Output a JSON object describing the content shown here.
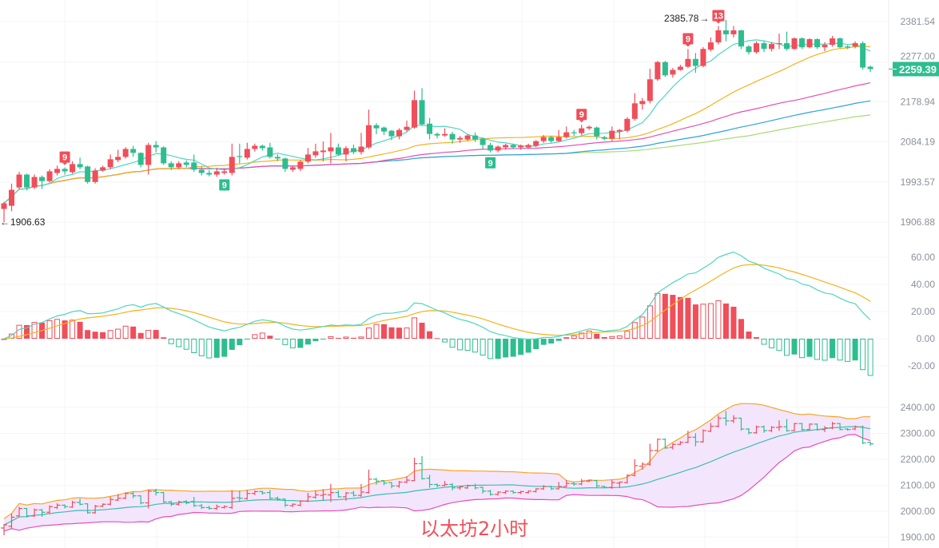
{
  "chart_data": {
    "type": "candlestick",
    "title": "以太坊2小时",
    "up_color": "#f04e5a",
    "down_color": "#2ebd8f",
    "main": {
      "scale": "log",
      "ylim": [
        1906.88,
        2381.54
      ],
      "yticks": [
        {
          "v": 2381.54,
          "t": "2381.54"
        },
        {
          "v": 2277.0,
          "t": "2277.00"
        },
        {
          "v": 2178.94,
          "t": "2178.94"
        },
        {
          "v": 2084.19,
          "t": "2084.19"
        },
        {
          "v": 1993.57,
          "t": "1993.57"
        },
        {
          "v": 1906.88,
          "t": "1906.88"
        }
      ],
      "last_price": 2259.39,
      "last_price_label": "2259.39",
      "last_price_color": "#2ebd8f",
      "max_label": "2385.78",
      "max_bar": 95,
      "min_label": "1906.63",
      "min_bar": 0,
      "moving_averages": [
        {
          "period": 7,
          "color": "#4fd6be"
        },
        {
          "period": 25,
          "color": "#f5b21d"
        },
        {
          "period": 50,
          "color": "#e54fb4"
        },
        {
          "period": 75,
          "color": "#2ea3dc"
        },
        {
          "period": 99,
          "color": "#a8db78"
        }
      ]
    },
    "markers": [
      {
        "bar": 8,
        "text": "9",
        "pos": "above",
        "color": "#f04e5a"
      },
      {
        "bar": 76,
        "text": "9",
        "pos": "above",
        "color": "#f04e5a"
      },
      {
        "bar": 90,
        "text": "9",
        "pos": "above",
        "color": "#f04e5a"
      },
      {
        "bar": 94,
        "text": "13",
        "pos": "above",
        "color": "#f04e5a"
      },
      {
        "bar": 29,
        "text": "9",
        "pos": "below",
        "color": "#2ebd8f"
      },
      {
        "bar": 64,
        "text": "9",
        "pos": "below",
        "color": "#2ebd8f"
      }
    ],
    "candles": [
      [
        1934.8,
        1950,
        1906.63,
        1946.9
      ],
      [
        1941.7,
        1990,
        1930,
        1976.3
      ],
      [
        1981.5,
        2016,
        1978,
        2010.0
      ],
      [
        2010.0,
        2012,
        1975,
        1981.5
      ],
      [
        1981.5,
        2010,
        1978,
        2004.6
      ],
      [
        2004.6,
        2008,
        1978,
        1995.5
      ],
      [
        1995.5,
        2022,
        1992,
        2017.2
      ],
      [
        2013.6,
        2030,
        2008,
        2022.7
      ],
      [
        2022.7,
        2026,
        2010,
        2017.2
      ],
      [
        2015.4,
        2040,
        2012,
        2033.5
      ],
      [
        2033.5,
        2048,
        2022,
        2026.3
      ],
      [
        2028.1,
        2030,
        1990,
        1993.6
      ],
      [
        1993.6,
        2024,
        1990,
        2019.0
      ],
      [
        2019.0,
        2030,
        2016,
        2026.3
      ],
      [
        2026.3,
        2055,
        2022,
        2044.4
      ],
      [
        2042.6,
        2066,
        2038,
        2049.8
      ],
      [
        2049.8,
        2072,
        2046,
        2067.9
      ],
      [
        2067.9,
        2075,
        2050,
        2058.9
      ],
      [
        2058.9,
        2060,
        2026,
        2031.7
      ],
      [
        2031.7,
        2082,
        2010,
        2077.0
      ],
      [
        2077.0,
        2086,
        2060,
        2071.5
      ],
      [
        2071.5,
        2074,
        2032,
        2035.3
      ],
      [
        2035.3,
        2040,
        2020,
        2026.3
      ],
      [
        2026.3,
        2040,
        2022,
        2035.3
      ],
      [
        2037.1,
        2042,
        2026,
        2031.7
      ],
      [
        2037.1,
        2055,
        2016,
        2020.9
      ],
      [
        2020.9,
        2028,
        2008,
        2013.6
      ],
      [
        2013.6,
        2020,
        2006,
        2010.0
      ],
      [
        2010.0,
        2025,
        2005,
        2017.2
      ],
      [
        2013.6,
        2022,
        2010,
        2017.2
      ],
      [
        2013.6,
        2080,
        2008,
        2049.8
      ],
      [
        2051.6,
        2080,
        2035,
        2049.8
      ],
      [
        2048.0,
        2082,
        2044,
        2067.9
      ],
      [
        2067.9,
        2080,
        2062,
        2075.2
      ],
      [
        2075.2,
        2078,
        2064,
        2069.7
      ],
      [
        2071.5,
        2082,
        2046,
        2049.8
      ],
      [
        2049.8,
        2056,
        2040,
        2046.2
      ],
      [
        2046.2,
        2048,
        2016,
        2022.7
      ],
      [
        2020.9,
        2030,
        2016,
        2026.3
      ],
      [
        2022.7,
        2042,
        2018,
        2039.0
      ],
      [
        2039.0,
        2070,
        2035,
        2055.2
      ],
      [
        2053.4,
        2080,
        2048,
        2062.5
      ],
      [
        2060.7,
        2085,
        2040,
        2064.3
      ],
      [
        2062.5,
        2105,
        2035,
        2071.5
      ],
      [
        2071.5,
        2080,
        2052,
        2055.2
      ],
      [
        2055.2,
        2074,
        2040,
        2069.7
      ],
      [
        2069.7,
        2078,
        2056,
        2060.7
      ],
      [
        2060.7,
        2105,
        2055,
        2073.3
      ],
      [
        2071.5,
        2160,
        2068,
        2123.1
      ],
      [
        2123.1,
        2128,
        2102,
        2115.7
      ],
      [
        2117.5,
        2120,
        2100,
        2108.2
      ],
      [
        2110.1,
        2112,
        2088,
        2097.1
      ],
      [
        2097.1,
        2116,
        2090,
        2111.9
      ],
      [
        2111.9,
        2134,
        2108,
        2119.4
      ],
      [
        2117.5,
        2206,
        2115,
        2182.9
      ],
      [
        2182.9,
        2212,
        2122,
        2125.0
      ],
      [
        2126.8,
        2140,
        2090,
        2102.6
      ],
      [
        2102.6,
        2106,
        2092,
        2098.9
      ],
      [
        2098.9,
        2116,
        2096,
        2102.6
      ],
      [
        2102.6,
        2108,
        2080,
        2089.6
      ],
      [
        2089.6,
        2098,
        2082,
        2093.3
      ],
      [
        2089.6,
        2102,
        2086,
        2098.9
      ],
      [
        2098.9,
        2106,
        2084,
        2089.6
      ],
      [
        2091.5,
        2094,
        2068,
        2077.0
      ],
      [
        2077.0,
        2082,
        2060,
        2064.3
      ],
      [
        2064.3,
        2076,
        2060,
        2073.3
      ],
      [
        2071.5,
        2080,
        2066,
        2077.0
      ],
      [
        2077.0,
        2080,
        2068,
        2071.5
      ],
      [
        2071.5,
        2078,
        2066,
        2075.2
      ],
      [
        2071.5,
        2080,
        2068,
        2077.0
      ],
      [
        2075.2,
        2088,
        2072,
        2086.0
      ],
      [
        2086.0,
        2100,
        2082,
        2095.2
      ],
      [
        2095.2,
        2098,
        2082,
        2086.0
      ],
      [
        2086.0,
        2112,
        2084,
        2095.2
      ],
      [
        2095.2,
        2120,
        2092,
        2106.4
      ],
      [
        2106.4,
        2112,
        2098,
        2104.5
      ],
      [
        2104.5,
        2124,
        2100,
        2115.7
      ],
      [
        2115.7,
        2122,
        2112,
        2119.4
      ],
      [
        2117.5,
        2120,
        2090,
        2097.1
      ],
      [
        2095.2,
        2098,
        2088,
        2091.5
      ],
      [
        2091.5,
        2120,
        2086,
        2110.1
      ],
      [
        2108.2,
        2114,
        2090,
        2111.9
      ],
      [
        2110.1,
        2142,
        2106,
        2138.0
      ],
      [
        2138.0,
        2200,
        2134,
        2175.2
      ],
      [
        2173.3,
        2188,
        2160,
        2180.9
      ],
      [
        2180.9,
        2260,
        2175,
        2233.9
      ],
      [
        2233.9,
        2280,
        2230,
        2277.0
      ],
      [
        2277.0,
        2280,
        2240,
        2243.7
      ],
      [
        2245.6,
        2262,
        2238,
        2257.4
      ],
      [
        2257.4,
        2270,
        2255,
        2265.2
      ],
      [
        2265.2,
        2310,
        2262,
        2284.9
      ],
      [
        2284.9,
        2300,
        2250,
        2267.2
      ],
      [
        2267.2,
        2315,
        2264,
        2310.4
      ],
      [
        2308.4,
        2340,
        2304,
        2327.2
      ],
      [
        2327.2,
        2370,
        2322,
        2358.5
      ],
      [
        2358.5,
        2385.78,
        2330,
        2348.1
      ],
      [
        2348.1,
        2370,
        2340,
        2358.5
      ],
      [
        2358.5,
        2360,
        2310,
        2316.7
      ],
      [
        2316.7,
        2320,
        2296,
        2302.1
      ],
      [
        2302.1,
        2330,
        2298,
        2325.1
      ],
      [
        2325.1,
        2330,
        2302,
        2310.4
      ],
      [
        2310.4,
        2328,
        2304,
        2323.0
      ],
      [
        2323.0,
        2350,
        2310,
        2325.1
      ],
      [
        2325.1,
        2355,
        2306,
        2310.4
      ],
      [
        2310.4,
        2340,
        2308,
        2337.6
      ],
      [
        2337.6,
        2340,
        2310,
        2314.6
      ],
      [
        2314.6,
        2338,
        2312,
        2335.5
      ],
      [
        2335.5,
        2338,
        2310,
        2314.6
      ],
      [
        2314.6,
        2328,
        2305,
        2320.9
      ],
      [
        2320.9,
        2344,
        2316,
        2337.6
      ],
      [
        2337.6,
        2340,
        2312,
        2314.6
      ],
      [
        2316.7,
        2320,
        2310,
        2314.6
      ],
      [
        2316.7,
        2330,
        2312,
        2325.1
      ],
      [
        2325.1,
        2330,
        2258,
        2263.2
      ],
      [
        2265.2,
        2268,
        2252,
        2259.39
      ]
    ],
    "macd": {
      "type": "histogram+line",
      "ylim": [
        -28,
        68
      ],
      "yticks": [
        {
          "v": 60,
          "t": "60.00"
        },
        {
          "v": 40,
          "t": "40.00"
        },
        {
          "v": 20,
          "t": "20.00"
        },
        {
          "v": 0,
          "t": "0.00"
        },
        {
          "v": -20,
          "t": "-20.00"
        }
      ],
      "dif_color": "#4fd6be",
      "dea_color": "#f5b21d"
    },
    "boll": {
      "type": "ohlc+bands",
      "scale": "linear",
      "ylim": [
        1900,
        2400
      ],
      "yticks": [
        {
          "v": 2400,
          "t": "2400.00"
        },
        {
          "v": 2300,
          "t": "2300.00"
        },
        {
          "v": 2200,
          "t": "2200.00"
        },
        {
          "v": 2100,
          "t": "2100.00"
        },
        {
          "v": 2000,
          "t": "2000.00"
        },
        {
          "v": 1900,
          "t": "1900.00"
        }
      ],
      "upper_color": "#f5a623",
      "mid_color": "#3bbfb0",
      "lower_color": "#e84fb8",
      "fill_color": "#f3e5fc"
    }
  }
}
